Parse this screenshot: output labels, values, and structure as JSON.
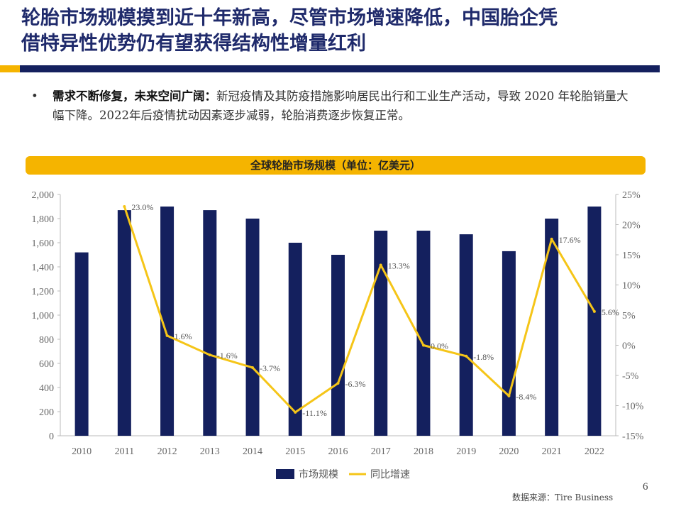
{
  "title": {
    "line1": "轮胎市场规模摸到近十年新高，尽管市场增速降低，中国胎企凭",
    "line2": "借特异性优势仍有望获得结构性增量红利"
  },
  "bullet": {
    "marker": "•",
    "lead": "需求不断修复，未来空间广阔：",
    "text": "新冠疫情及其防疫措施影响居民出行和工业生产活动，导致 2020 年轮胎销量大幅下降。2022年后疫情扰动因素逐步减弱，轮胎消费逐步恢复正常。"
  },
  "chart_banner": "全球轮胎市场规模（单位：亿美元）",
  "chart_data": {
    "type": "bar",
    "title": "全球轮胎市场规模（单位：亿美元）",
    "categories": [
      "2010",
      "2011",
      "2012",
      "2013",
      "2014",
      "2015",
      "2016",
      "2017",
      "2018",
      "2019",
      "2020",
      "2021",
      "2022"
    ],
    "series": [
      {
        "name": "市场规模",
        "type": "bar",
        "axis": "left",
        "values": [
          1520,
          1870,
          1900,
          1870,
          1800,
          1600,
          1500,
          1700,
          1700,
          1670,
          1530,
          1800,
          1900
        ]
      },
      {
        "name": "同比增速",
        "type": "line",
        "axis": "right",
        "values": [
          null,
          23.0,
          1.6,
          -1.6,
          -3.7,
          -11.1,
          -6.3,
          13.3,
          0.0,
          -1.8,
          -8.4,
          17.6,
          5.6
        ],
        "labels": [
          "",
          "23.0%",
          "1.6%",
          "-1.6%",
          "-3.7%",
          "-11.1%",
          "-6.3%",
          "13.3%",
          "0.0%",
          "-1.8%",
          "-8.4%",
          "17.6%",
          "5.6%"
        ]
      }
    ],
    "ylim": [
      0,
      2000
    ],
    "y_ticks": [
      "0",
      "200",
      "400",
      "600",
      "800",
      "1,000",
      "1,200",
      "1,400",
      "1,600",
      "1,800",
      "2,000"
    ],
    "y2lim": [
      -15,
      25
    ],
    "y2_ticks": [
      "-15%",
      "-10%",
      "-5%",
      "0%",
      "5%",
      "10%",
      "15%",
      "20%",
      "25%"
    ],
    "legend_position": "bottom",
    "colors": {
      "bar": "#14205e",
      "line": "#f5c518"
    }
  },
  "source": "数据来源：Tire Business",
  "page_number": "6"
}
